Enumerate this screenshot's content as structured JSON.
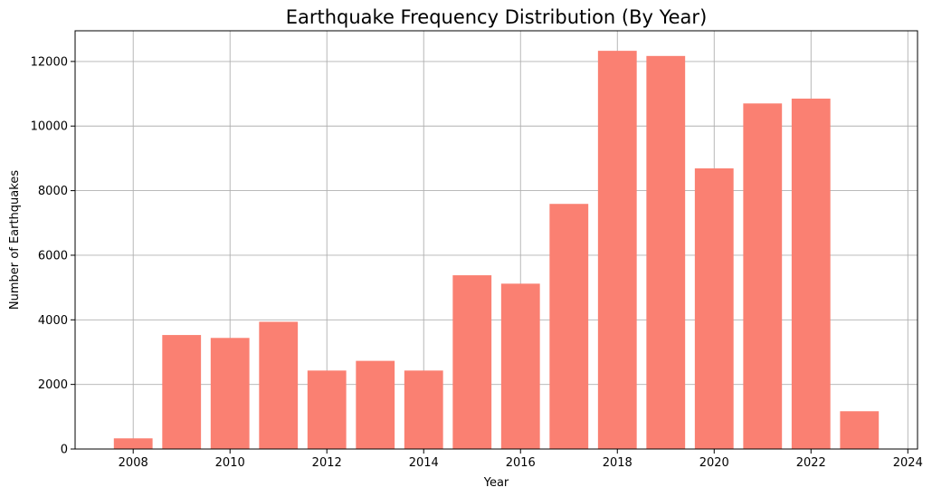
{
  "chart_data": {
    "type": "bar",
    "title": "Earthquake Frequency Distribution (By Year)",
    "xlabel": "Year",
    "ylabel": "Number of Earthquakes",
    "categories": [
      "2008",
      "2009",
      "2010",
      "2011",
      "2012",
      "2013",
      "2014",
      "2015",
      "2016",
      "2017",
      "2018",
      "2019",
      "2020",
      "2021",
      "2022",
      "2023"
    ],
    "x": [
      2008,
      2009,
      2010,
      2011,
      2012,
      2013,
      2014,
      2015,
      2016,
      2017,
      2018,
      2019,
      2020,
      2021,
      2022,
      2023
    ],
    "values": [
      330,
      3530,
      3440,
      3940,
      2430,
      2730,
      2430,
      5380,
      5120,
      7590,
      12330,
      12170,
      8690,
      10700,
      10850,
      1170
    ],
    "xlim": [
      2006.8,
      2024.2
    ],
    "ylim": [
      0,
      12950
    ],
    "xticks": [
      2008,
      2010,
      2012,
      2014,
      2016,
      2018,
      2020,
      2022,
      2024
    ],
    "yticks": [
      0,
      2000,
      4000,
      6000,
      8000,
      10000,
      12000
    ],
    "bar_color": "#fa8072",
    "grid": true
  }
}
